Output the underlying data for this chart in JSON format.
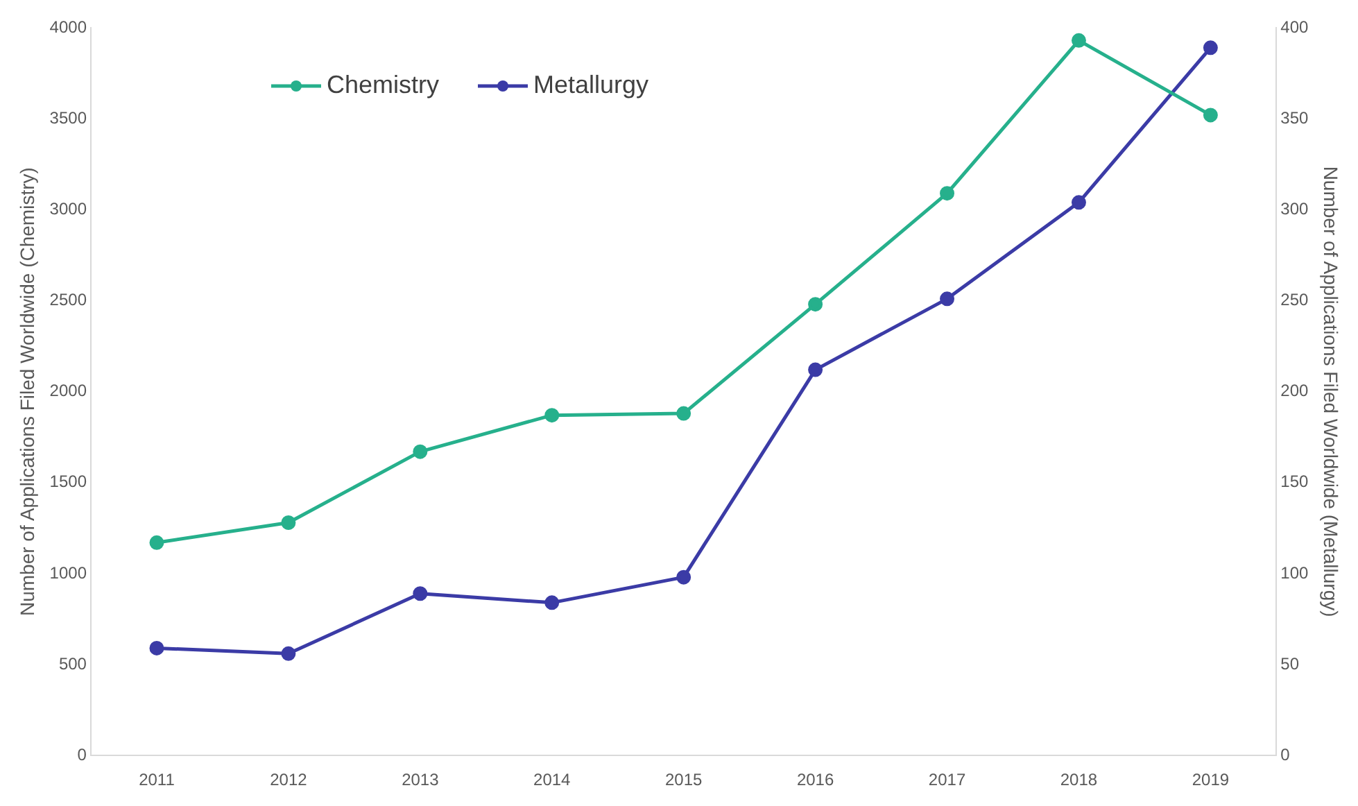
{
  "chart_data": {
    "type": "line",
    "ylabel": "Number of Applications Filed Worldwide (Chemistry)",
    "y2label": "Number of Applications Filed Worldwide (Metallurgy)",
    "categories": [
      "2011",
      "2012",
      "2013",
      "2014",
      "2015",
      "2016",
      "2017",
      "2018",
      "2019"
    ],
    "series": [
      {
        "name": "Chemistry",
        "color": "#26b08c",
        "values": [
          1170,
          1280,
          1670,
          1870,
          1880,
          2480,
          3090,
          3930,
          3520
        ]
      },
      {
        "name": "Metallurgy",
        "color": "#3b3ba6",
        "axis": "y2",
        "values": [
          59,
          56,
          89,
          84,
          98,
          212,
          251,
          304,
          389
        ]
      }
    ],
    "ylim": [
      0,
      4000
    ],
    "yticks": [
      0,
      500,
      1000,
      1500,
      2000,
      2500,
      3000,
      3500,
      4000
    ],
    "y2lim": [
      0,
      400
    ],
    "y2ticks": [
      0,
      50,
      100,
      150,
      200,
      250,
      300,
      350,
      400
    ],
    "grid": false,
    "legend": "top left",
    "marker": "circle",
    "line_style": "solid"
  }
}
